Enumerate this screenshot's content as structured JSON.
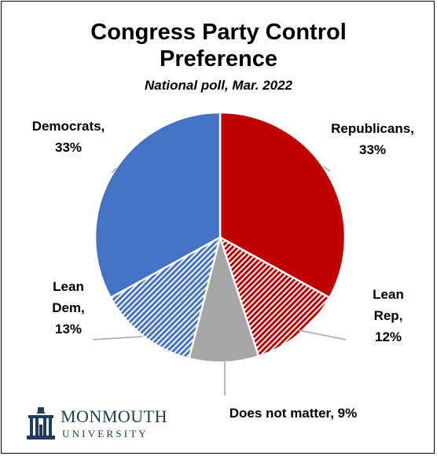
{
  "chart_data": {
    "type": "pie",
    "title_lines": [
      "Congress Party Control",
      "Preference"
    ],
    "subtitle": "National poll, Mar. 2022",
    "slices": [
      {
        "name": "Republicans",
        "value": 33,
        "color": "#c00000",
        "pattern": "solid",
        "label_lines": [
          "Republicans,",
          "33%"
        ]
      },
      {
        "name": "Lean Rep",
        "value": 12,
        "color": "#c00000",
        "pattern": "hatched",
        "label_lines": [
          "Lean",
          "Rep,",
          "12%"
        ]
      },
      {
        "name": "Does not matter",
        "value": 9,
        "color": "#a6a6a6",
        "pattern": "solid",
        "label_lines": [
          "Does not matter, 9%"
        ]
      },
      {
        "name": "Lean Dem",
        "value": 13,
        "color": "#4472c4",
        "pattern": "hatched",
        "label_lines": [
          "Lean",
          "Dem,",
          "13%"
        ]
      },
      {
        "name": "Democrats",
        "value": 33,
        "color": "#4472c4",
        "pattern": "solid",
        "label_lines": [
          "Democrats,",
          "33%"
        ]
      }
    ]
  },
  "logo": {
    "name": "MONMOUTH",
    "sub": "UNIVERSITY",
    "color": "#1f3b5e"
  }
}
